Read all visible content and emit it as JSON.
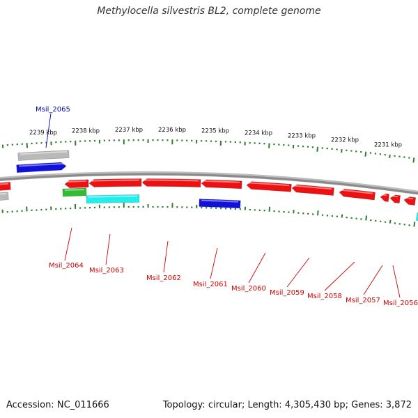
{
  "title": "Methylocella silvestris BL2, complete genome",
  "footer": {
    "accession_label": "Accession:",
    "accession_value": "NC_011666",
    "topology_label": "Topology:",
    "topology_value": "circular",
    "length_label": "Length:",
    "length_value": "4,305,430 bp",
    "genes_label": "Genes:",
    "genes_value": "3,872"
  },
  "colors": {
    "backbone": "#8a8a8a",
    "tick": "#2e7d2e",
    "label_red": "#cc0000",
    "label_blue": "#0000aa",
    "gene_red": "#ee1111",
    "gene_blue": "#1111dd",
    "gene_green": "#33bb33",
    "gene_cyan": "#22eeee",
    "gene_gray": "#b9b9b9"
  },
  "scale_labels": [
    {
      "text": "2239 kbp",
      "kbp": 2239
    },
    {
      "text": "2238 kbp",
      "kbp": 2238
    },
    {
      "text": "2237 kbp",
      "kbp": 2237
    },
    {
      "text": "2236 kbp",
      "kbp": 2236
    },
    {
      "text": "2235 kbp",
      "kbp": 2235
    },
    {
      "text": "2234 kbp",
      "kbp": 2234
    },
    {
      "text": "2233 kbp",
      "kbp": 2233
    },
    {
      "text": "2232 kbp",
      "kbp": 2232
    },
    {
      "text": "2231 kbp",
      "kbp": 2231
    }
  ],
  "genes": [
    {
      "name": "Msil_2065",
      "strand": "forward",
      "color": "blue",
      "label_color": "blue",
      "show_label": true
    },
    {
      "name": "gray-forward-feature",
      "strand": "forward",
      "color": "gray",
      "show_label": false
    },
    {
      "name": "Msil_2064",
      "strand": "reverse",
      "color": "green",
      "label_color": "red",
      "show_label": true
    },
    {
      "name": "Msil_2063",
      "strand": "reverse",
      "color": "cyan",
      "label_color": "red",
      "show_label": true
    },
    {
      "name": "Msil_2062",
      "strand": "reverse",
      "color": "red",
      "label_color": "red",
      "show_label": true
    },
    {
      "name": "Msil_2061",
      "strand": "reverse",
      "color": "blue",
      "label_color": "red",
      "show_label": true
    },
    {
      "name": "Msil_2060",
      "strand": "reverse",
      "color": "red",
      "label_color": "red",
      "show_label": true
    },
    {
      "name": "Msil_2059",
      "strand": "reverse",
      "color": "red",
      "label_color": "red",
      "show_label": true
    },
    {
      "name": "Msil_2058",
      "strand": "reverse",
      "color": "red",
      "label_color": "red",
      "show_label": true
    },
    {
      "name": "Msil_2057",
      "strand": "reverse",
      "color": "red",
      "label_color": "red",
      "show_label": true
    },
    {
      "name": "Msil_2056",
      "strand": "reverse",
      "color": "red",
      "label_color": "red",
      "show_label": true
    }
  ]
}
